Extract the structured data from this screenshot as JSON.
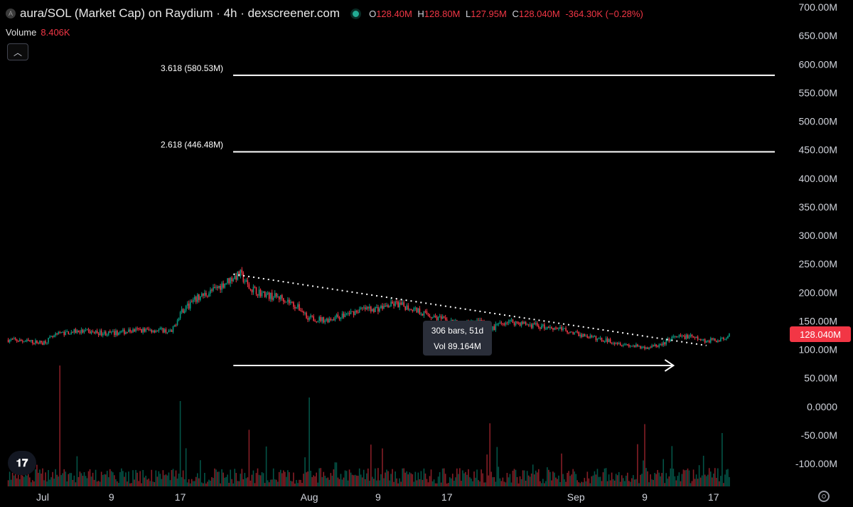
{
  "header": {
    "symbol_badge": "A",
    "title": "aura/SOL (Market Cap) on Raydium · 4h · dexscreener.com",
    "ohlc": [
      {
        "key": "O",
        "value": "128.40M"
      },
      {
        "key": "H",
        "value": "128.80M"
      },
      {
        "key": "L",
        "value": "127.95M"
      },
      {
        "key": "C",
        "value": "128.040M"
      }
    ],
    "change": "-364.30K (−0.28%)",
    "volume_label": "Volume",
    "volume_value": "8.406K",
    "collapse_icon": "chevron-up-icon"
  },
  "colors": {
    "background": "#000000",
    "up": "#089981",
    "down": "#f23645",
    "text": "#d1d4dc",
    "drawing": "#ffffff"
  },
  "tooltip": {
    "bars": "306 bars, 51d",
    "vol": "Vol 89.164M"
  },
  "last_price": "128.040M",
  "icons": {
    "logo": "tradingview-logo-icon",
    "settings": "settings-icon"
  },
  "chart_data": {
    "type": "candlestick",
    "title": "aura/SOL (Market Cap) on Raydium · 4h · dexscreener.com",
    "y_axis": {
      "min": -100000000,
      "max": 700000000,
      "ticks": [
        {
          "value": 700000000,
          "label": "700.00M"
        },
        {
          "value": 650000000,
          "label": "650.00M"
        },
        {
          "value": 600000000,
          "label": "600.00M"
        },
        {
          "value": 550000000,
          "label": "550.00M"
        },
        {
          "value": 500000000,
          "label": "500.00M"
        },
        {
          "value": 450000000,
          "label": "450.00M"
        },
        {
          "value": 400000000,
          "label": "400.00M"
        },
        {
          "value": 350000000,
          "label": "350.00M"
        },
        {
          "value": 300000000,
          "label": "300.00M"
        },
        {
          "value": 250000000,
          "label": "250.00M"
        },
        {
          "value": 200000000,
          "label": "200.00M"
        },
        {
          "value": 150000000,
          "label": "150.00M"
        },
        {
          "value": 100000000,
          "label": "100.00M"
        },
        {
          "value": 50000000,
          "label": "50.00M"
        },
        {
          "value": 0,
          "label": "0.0000"
        },
        {
          "value": -50000000,
          "label": "-50.00M"
        },
        {
          "value": -100000000,
          "label": "-100.00M"
        }
      ]
    },
    "x_axis": {
      "ticks": [
        {
          "label": "Jul",
          "day": 0
        },
        {
          "label": "9",
          "day": 8
        },
        {
          "label": "17",
          "day": 16
        },
        {
          "label": "Aug",
          "day": 31
        },
        {
          "label": "9",
          "day": 39
        },
        {
          "label": "17",
          "day": 47
        },
        {
          "label": "Sep",
          "day": 62
        },
        {
          "label": "9",
          "day": 70
        },
        {
          "label": "17",
          "day": 78
        }
      ]
    },
    "price_series_keypoints_day_value": [
      [
        -4,
        117000000
      ],
      [
        0,
        112000000
      ],
      [
        2,
        128000000
      ],
      [
        4,
        132000000
      ],
      [
        8,
        128000000
      ],
      [
        11,
        134000000
      ],
      [
        14,
        134000000
      ],
      [
        15,
        130000000
      ],
      [
        16,
        165000000
      ],
      [
        18,
        190000000
      ],
      [
        20,
        205000000
      ],
      [
        22,
        225000000
      ],
      [
        23,
        232000000
      ],
      [
        24,
        208000000
      ],
      [
        26,
        195000000
      ],
      [
        28,
        190000000
      ],
      [
        30,
        170000000
      ],
      [
        31,
        155000000
      ],
      [
        33,
        152000000
      ],
      [
        35,
        160000000
      ],
      [
        37,
        170000000
      ],
      [
        39,
        172000000
      ],
      [
        41,
        180000000
      ],
      [
        43,
        172000000
      ],
      [
        45,
        160000000
      ],
      [
        47,
        150000000
      ],
      [
        49,
        145000000
      ],
      [
        51,
        148000000
      ],
      [
        52,
        135000000
      ],
      [
        54,
        150000000
      ],
      [
        56,
        145000000
      ],
      [
        58,
        140000000
      ],
      [
        60,
        138000000
      ],
      [
        62,
        128000000
      ],
      [
        64,
        120000000
      ],
      [
        66,
        115000000
      ],
      [
        68,
        108000000
      ],
      [
        70,
        103000000
      ],
      [
        72,
        108000000
      ],
      [
        73,
        120000000
      ],
      [
        75,
        123000000
      ],
      [
        77,
        115000000
      ],
      [
        79,
        118000000
      ],
      [
        80,
        128040000
      ]
    ],
    "fib_levels": [
      {
        "label": "3.618 (580.53M)",
        "value": 580530000
      },
      {
        "label": "2.618 (446.48M)",
        "value": 446480000
      }
    ],
    "trendline": {
      "start": {
        "day": 23,
        "value": 232000000
      },
      "end": {
        "day": 78,
        "value": 107000000
      },
      "style": "dotted"
    },
    "measure_range": {
      "start_day": 23,
      "end_day": 74,
      "value": 72000000,
      "bars": 306,
      "days": 51,
      "volume": "89.164M"
    },
    "last_price": 128040000,
    "volume_series": "per-bar volume histogram along the bottom, mostly small with spikes near Jul 2, Jul 16, Jul 24, Jul 31, Aug 21, Sep 8, Sep 17"
  }
}
